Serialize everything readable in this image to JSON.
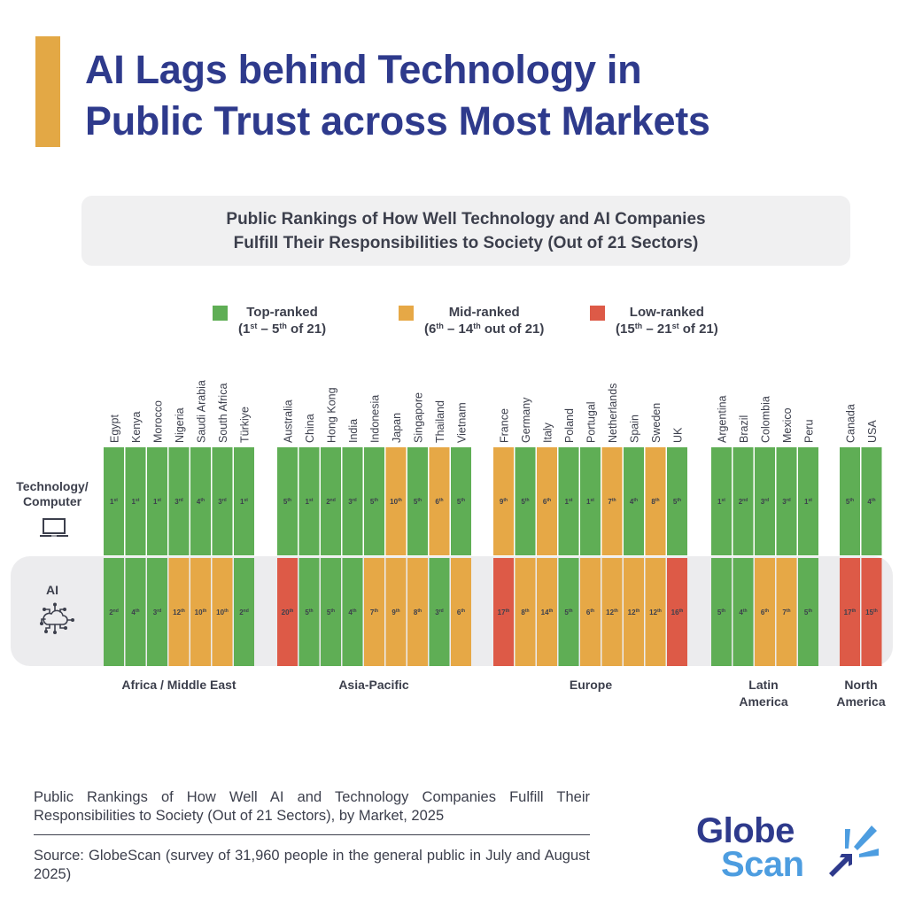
{
  "header": {
    "title_line1": "AI Lags behind Technology in",
    "title_line2": "Public Trust across Most Markets",
    "accent_color": "#e3a845",
    "title_color": "#2e3a8c"
  },
  "subtitle": {
    "line1": "Public Rankings of How Well Technology and AI Companies",
    "line2": "Fulfill Their Responsibilities to Society (Out of 21 Sectors)"
  },
  "legend": [
    {
      "key": "top",
      "label": "Top-ranked",
      "range_a": "1",
      "sup_a": "st",
      "sep": " – ",
      "range_b": "5",
      "sup_b": "th",
      "tail": " of 21)",
      "color": "#5fae55"
    },
    {
      "key": "mid",
      "label": "Mid-ranked",
      "range_a": "6",
      "sup_a": "th",
      "sep": " – ",
      "range_b": "14",
      "sup_b": "th",
      "tail": " out of 21)",
      "color": "#e6a846"
    },
    {
      "key": "low",
      "label": "Low-ranked",
      "range_a": "15",
      "sup_a": "th",
      "sep": " – ",
      "range_b": "21",
      "sup_b": "st",
      "tail": " of 21)",
      "color": "#dd5a47"
    }
  ],
  "row_labels": {
    "technology": "Technology/\nComputer",
    "technology_line1": "Technology/",
    "technology_line2": "Computer",
    "technology_icon": "laptop-icon",
    "ai": "AI",
    "ai_icon": "cloud-network-icon"
  },
  "chart_data": {
    "type": "heatmap",
    "title": "Public Rankings of How Well Technology and AI Companies Fulfill Their Responsibilities to Society (Out of 21 Sectors)",
    "value_range": [
      1,
      21
    ],
    "rows": [
      "Technology/Computer",
      "AI"
    ],
    "color_bins": [
      {
        "name": "Top-ranked",
        "min": 1,
        "max": 5,
        "color": "#5fae55"
      },
      {
        "name": "Mid-ranked",
        "min": 6,
        "max": 14,
        "color": "#e6a846"
      },
      {
        "name": "Low-ranked",
        "min": 15,
        "max": 21,
        "color": "#dd5a47"
      }
    ],
    "regions": [
      {
        "name": "Africa / Middle East",
        "markets": [
          "Egypt",
          "Kenya",
          "Morocco",
          "Nigeria",
          "Saudi Arabia",
          "South Africa",
          "Türkiye"
        ],
        "technology": [
          1,
          1,
          1,
          3,
          4,
          3,
          1
        ],
        "ai": [
          2,
          4,
          3,
          12,
          10,
          10,
          2
        ]
      },
      {
        "name": "Asia-Pacific",
        "markets": [
          "Australia",
          "China",
          "Hong Kong",
          "India",
          "Indonesia",
          "Japan",
          "Singapore",
          "Thailand",
          "Vietnam"
        ],
        "technology": [
          5,
          1,
          2,
          3,
          5,
          10,
          5,
          6,
          5
        ],
        "ai": [
          20,
          5,
          5,
          4,
          7,
          9,
          8,
          3,
          6
        ]
      },
      {
        "name": "Europe",
        "markets": [
          "France",
          "Germany",
          "Italy",
          "Poland",
          "Portugal",
          "Netherlands",
          "Spain",
          "Sweden",
          "UK"
        ],
        "technology": [
          9,
          5,
          6,
          1,
          1,
          7,
          4,
          8,
          5
        ],
        "ai": [
          17,
          8,
          14,
          5,
          6,
          12,
          12,
          12,
          16
        ]
      },
      {
        "name": "Latin America",
        "label_line1": "Latin",
        "label_line2": "America",
        "markets": [
          "Argentina",
          "Brazil",
          "Colombia",
          "Mexico",
          "Peru"
        ],
        "technology": [
          1,
          2,
          3,
          3,
          1
        ],
        "ai": [
          5,
          4,
          6,
          7,
          5
        ]
      },
      {
        "name": "North America",
        "label_line1": "North",
        "label_line2": "America",
        "markets": [
          "Canada",
          "USA"
        ],
        "technology": [
          5,
          4
        ],
        "ai": [
          17,
          15
        ]
      }
    ]
  },
  "caption": "Public Rankings of How Well AI and Technology Companies Fulfill Their Responsibilities to Society (Out of 21 Sectors), by Market, 2025",
  "source": "Source: GlobeScan (survey of 31,960 people in the general public in July and August 2025)",
  "logo": {
    "line1": "Globe",
    "line2": "Scan",
    "primary_color": "#2e3a8c",
    "secondary_color": "#4d9de0"
  }
}
